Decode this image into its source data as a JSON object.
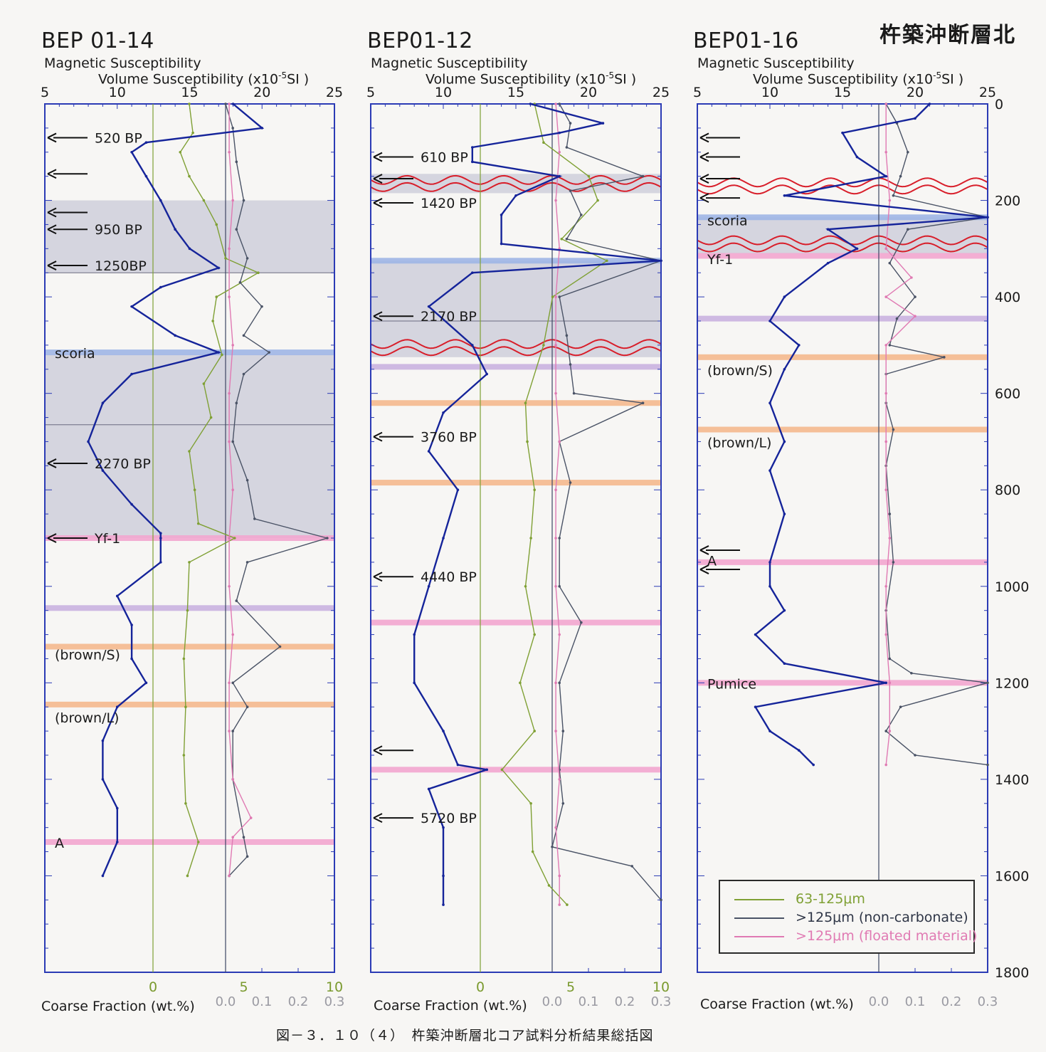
{
  "page": {
    "main_title": "杵築沖断層北",
    "caption": "図－３．１０（４）　杵築沖断層北コア試料分析結果総括図",
    "ms_label": "Magnetic Susceptibility",
    "vs_label_pre": "Volume Susceptibility (x10",
    "vs_label_exp": "-5",
    "vs_label_post": "SI )",
    "cf_label": "Coarse Fraction (wt.%)"
  },
  "legend": {
    "items": [
      {
        "label": "63-125μm",
        "color": "#7fa034"
      },
      {
        "label": ">125μm (non-carbonate)",
        "color": "#4a5366"
      },
      {
        "label": ">125μm (floated material)",
        "color": "#e07ab3"
      }
    ]
  },
  "colors": {
    "ms": "#15249a",
    "fine": "#7fa034",
    "coarse": "#4a5366",
    "floated": "#e07ab3",
    "frame": "#2b3bb5",
    "shade": "#cfcfdb",
    "tephra_blue": "#9fb6e6",
    "tephra_pink": "#f2a6cf",
    "tephra_purple": "#c9b2e0",
    "tephra_orange": "#f4b98e",
    "wavy": "#d81e2a"
  },
  "chart_data": [
    {
      "type": "line",
      "core": "BEP 01-14",
      "ms_ticks": [
        "5",
        "10",
        "15",
        "20",
        "25"
      ],
      "cf_green_ticks": [
        "0",
        "5",
        "10"
      ],
      "cf_gray_ticks": [
        "0.0",
        "0.1",
        "0.2",
        "0.3"
      ],
      "ms_range": [
        5,
        25
      ],
      "depth_range": [
        0,
        1800
      ],
      "shaded_intervals": [
        [
          200,
          350
        ],
        [
          520,
          900
        ]
      ],
      "ref_lines": [
        665,
        350
      ],
      "tephra": [
        {
          "depth": 515,
          "color": "blue"
        },
        {
          "depth": 900,
          "color": "pink"
        },
        {
          "depth": 1045,
          "color": "purple"
        },
        {
          "depth": 1125,
          "color": "orange"
        },
        {
          "depth": 1245,
          "color": "orange"
        },
        {
          "depth": 1530,
          "color": "pink"
        }
      ],
      "wavy": [],
      "labels": [
        {
          "text": "520 BP",
          "depth": 70,
          "arrow": true
        },
        {
          "text": "",
          "depth": 145,
          "arrow": true
        },
        {
          "text": "",
          "depth": 225,
          "arrow": true
        },
        {
          "text": "950 BP",
          "depth": 260,
          "arrow": true
        },
        {
          "text": "1250BP",
          "depth": 335,
          "arrow": true
        },
        {
          "text": "scoria",
          "depth": 515,
          "arrow": false
        },
        {
          "text": "2270 BP",
          "depth": 745,
          "arrow": true
        },
        {
          "text": "Yf-1",
          "depth": 900,
          "arrow": true
        },
        {
          "text": "(brown/S)",
          "depth": 1140,
          "arrow": false
        },
        {
          "text": "(brown/L)",
          "depth": 1270,
          "arrow": false
        },
        {
          "text": "A",
          "depth": 1530,
          "arrow": false
        }
      ],
      "ms": {
        "depth": [
          0,
          50,
          80,
          100,
          150,
          200,
          260,
          300,
          340,
          380,
          420,
          480,
          515,
          560,
          620,
          700,
          760,
          830,
          890,
          900,
          950,
          1020,
          1080,
          1150,
          1200,
          1250,
          1320,
          1400,
          1460,
          1530,
          1600
        ],
        "values": [
          18,
          20,
          12,
          11,
          12,
          13,
          14,
          15,
          17,
          13,
          11,
          14,
          17,
          11,
          9,
          8,
          9,
          11,
          13,
          13,
          13,
          10,
          11,
          11,
          12,
          10,
          9,
          9,
          10,
          10,
          9
        ]
      },
      "fine": {
        "depth": [
          0,
          60,
          100,
          150,
          200,
          250,
          320,
          350,
          400,
          450,
          520,
          580,
          650,
          720,
          800,
          870,
          900,
          950,
          1050,
          1150,
          1250,
          1350,
          1450,
          1530,
          1600
        ],
        "values": [
          2.0,
          2.2,
          1.5,
          2.0,
          2.8,
          3.5,
          4.0,
          5.8,
          3.5,
          3.3,
          3.8,
          2.8,
          3.2,
          2.0,
          2.3,
          2.5,
          4.5,
          2.0,
          1.9,
          1.7,
          1.8,
          1.7,
          1.8,
          2.5,
          1.9
        ]
      },
      "coarse": {
        "depth": [
          0,
          50,
          120,
          200,
          260,
          320,
          370,
          420,
          480,
          515,
          560,
          620,
          700,
          780,
          860,
          900,
          950,
          1030,
          1125,
          1200,
          1250,
          1300,
          1400,
          1520,
          1560,
          1600
        ],
        "values": [
          0.0,
          0.02,
          0.03,
          0.05,
          0.03,
          0.06,
          0.04,
          0.1,
          0.05,
          0.12,
          0.05,
          0.03,
          0.02,
          0.06,
          0.08,
          0.28,
          0.06,
          0.03,
          0.15,
          0.02,
          0.06,
          0.02,
          0.02,
          0.05,
          0.06,
          0.01
        ]
      },
      "floated": {
        "depth": [
          0,
          100,
          200,
          300,
          400,
          500,
          600,
          700,
          800,
          900,
          1000,
          1100,
          1200,
          1300,
          1400,
          1480,
          1520,
          1600
        ],
        "values": [
          0.01,
          0.01,
          0.02,
          0.01,
          0.01,
          0.02,
          0.01,
          0.01,
          0.02,
          0.01,
          0.01,
          0.02,
          0.01,
          0.01,
          0.02,
          0.07,
          0.02,
          0.01
        ]
      }
    },
    {
      "type": "line",
      "core": "BEP01-12",
      "ms_ticks": [
        "5",
        "10",
        "15",
        "20",
        "25"
      ],
      "cf_green_ticks": [
        "0",
        "5",
        "10"
      ],
      "cf_gray_ticks": [
        "0.0",
        "0.1",
        "0.2",
        "0.3"
      ],
      "ms_range": [
        5,
        25
      ],
      "depth_range": [
        0,
        1800
      ],
      "shaded_intervals": [
        [
          145,
          185
        ],
        [
          325,
          525
        ]
      ],
      "ref_lines": [
        450
      ],
      "tephra": [
        {
          "depth": 325,
          "color": "blue"
        },
        {
          "depth": 545,
          "color": "purple"
        },
        {
          "depth": 620,
          "color": "orange"
        },
        {
          "depth": 785,
          "color": "orange"
        },
        {
          "depth": 1075,
          "color": "pink"
        },
        {
          "depth": 1380,
          "color": "pink"
        }
      ],
      "wavy": [
        165,
        505
      ],
      "labels": [
        {
          "text": "610 BP",
          "depth": 110,
          "arrow": true
        },
        {
          "text": "",
          "depth": 155,
          "arrow": true
        },
        {
          "text": "1420 BP",
          "depth": 205,
          "arrow": true
        },
        {
          "text": "2170 BP",
          "depth": 440,
          "arrow": true
        },
        {
          "text": "3760 BP",
          "depth": 690,
          "arrow": true
        },
        {
          "text": "4440 BP",
          "depth": 980,
          "arrow": true
        },
        {
          "text": "",
          "depth": 1340,
          "arrow": true
        },
        {
          "text": "5720 BP",
          "depth": 1480,
          "arrow": true
        }
      ],
      "ms": {
        "depth": [
          0,
          40,
          60,
          90,
          120,
          150,
          190,
          230,
          290,
          325,
          350,
          420,
          500,
          560,
          640,
          720,
          800,
          900,
          1000,
          1100,
          1200,
          1300,
          1370,
          1380,
          1420,
          1500,
          1600,
          1660
        ],
        "values": [
          16,
          21,
          18,
          12,
          12,
          18,
          15,
          14,
          14,
          25,
          12,
          9,
          12,
          13,
          10,
          9,
          11,
          10,
          9,
          8,
          8,
          10,
          11,
          13,
          9,
          10,
          10,
          10
        ]
      },
      "fine": {
        "depth": [
          0,
          80,
          150,
          200,
          280,
          325,
          400,
          500,
          620,
          700,
          800,
          900,
          1000,
          1100,
          1200,
          1300,
          1380,
          1450,
          1550,
          1620,
          1660
        ],
        "values": [
          3.0,
          3.5,
          6.0,
          6.5,
          4.5,
          7.0,
          4.0,
          3.5,
          2.5,
          2.6,
          3.0,
          2.8,
          2.5,
          3.0,
          2.2,
          3.0,
          1.2,
          2.8,
          2.9,
          3.8,
          4.8
        ]
      },
      "coarse": {
        "depth": [
          0,
          40,
          90,
          150,
          180,
          230,
          280,
          325,
          400,
          480,
          540,
          600,
          620,
          700,
          785,
          900,
          1000,
          1075,
          1200,
          1300,
          1380,
          1450,
          1540,
          1580,
          1650
        ],
        "values": [
          0.02,
          0.05,
          0.04,
          0.25,
          0.05,
          0.08,
          0.04,
          0.3,
          0.02,
          0.04,
          0.05,
          0.06,
          0.25,
          0.02,
          0.05,
          0.02,
          0.02,
          0.08,
          0.02,
          0.03,
          0.02,
          0.03,
          0.0,
          0.22,
          0.3
        ]
      },
      "floated": {
        "depth": [
          0,
          100,
          200,
          300,
          400,
          500,
          600,
          700,
          800,
          900,
          1000,
          1100,
          1200,
          1300,
          1400,
          1500,
          1600,
          1660
        ],
        "values": [
          0.01,
          0.02,
          0.01,
          0.02,
          0.01,
          0.01,
          0.01,
          0.02,
          0.01,
          0.01,
          0.01,
          0.02,
          0.01,
          0.01,
          0.02,
          0.01,
          0.02,
          0.02
        ]
      }
    },
    {
      "type": "line",
      "core": "BEP01-16",
      "ms_ticks": [
        "5",
        "10",
        "15",
        "20",
        "25"
      ],
      "cf_green_ticks": [],
      "cf_gray_ticks": [
        "0.0",
        "0.1",
        "0.2",
        "0.3"
      ],
      "ms_range": [
        5,
        25
      ],
      "depth_range": [
        0,
        1800
      ],
      "depth_ticks": [
        "0",
        "200",
        "400",
        "600",
        "800",
        "1000",
        "1200",
        "1400",
        "1600",
        "1800"
      ],
      "shaded_intervals": [
        [
          235,
          310
        ]
      ],
      "ref_lines": [],
      "tephra": [
        {
          "depth": 235,
          "color": "blue"
        },
        {
          "depth": 315,
          "color": "pink"
        },
        {
          "depth": 445,
          "color": "purple"
        },
        {
          "depth": 525,
          "color": "orange"
        },
        {
          "depth": 675,
          "color": "orange"
        },
        {
          "depth": 950,
          "color": "pink"
        },
        {
          "depth": 1200,
          "color": "pink"
        }
      ],
      "wavy": [
        170,
        290
      ],
      "labels": [
        {
          "text": "",
          "depth": 70,
          "arrow": true
        },
        {
          "text": "",
          "depth": 110,
          "arrow": true
        },
        {
          "text": "",
          "depth": 155,
          "arrow": true
        },
        {
          "text": "",
          "depth": 195,
          "arrow": true
        },
        {
          "text": "scoria",
          "depth": 240,
          "arrow": false
        },
        {
          "text": "Yf-1",
          "depth": 320,
          "arrow": false
        },
        {
          "text": "(brown/S)",
          "depth": 550,
          "arrow": false
        },
        {
          "text": "(brown/L)",
          "depth": 700,
          "arrow": false
        },
        {
          "text": "",
          "depth": 925,
          "arrow": true
        },
        {
          "text": "A",
          "depth": 945,
          "arrow": false
        },
        {
          "text": "",
          "depth": 965,
          "arrow": true
        },
        {
          "text": "Pumice",
          "depth": 1200,
          "arrow": false
        }
      ],
      "ms": {
        "depth": [
          0,
          30,
          60,
          110,
          150,
          190,
          235,
          260,
          300,
          330,
          400,
          450,
          500,
          550,
          620,
          700,
          760,
          850,
          950,
          1000,
          1050,
          1100,
          1160,
          1200,
          1250,
          1300,
          1340,
          1370
        ],
        "values": [
          21,
          20,
          15,
          16,
          18,
          11,
          25,
          14,
          16,
          14,
          11,
          10,
          12,
          11,
          10,
          11,
          10,
          11,
          10,
          10,
          11,
          9,
          11,
          18,
          9,
          10,
          12,
          13
        ]
      },
      "coarse": {
        "depth": [
          0,
          40,
          100,
          150,
          190,
          235,
          260,
          330,
          400,
          445,
          500,
          525,
          560,
          620,
          675,
          750,
          850,
          950,
          1050,
          1150,
          1180,
          1200,
          1250,
          1300,
          1350,
          1370
        ],
        "values": [
          0.02,
          0.05,
          0.08,
          0.06,
          0.04,
          0.3,
          0.08,
          0.03,
          0.1,
          0.05,
          0.03,
          0.18,
          0.02,
          0.02,
          0.04,
          0.02,
          0.03,
          0.04,
          0.02,
          0.03,
          0.09,
          0.3,
          0.06,
          0.02,
          0.1,
          0.3
        ]
      },
      "floated": {
        "depth": [
          0,
          100,
          200,
          300,
          360,
          400,
          440,
          500,
          600,
          700,
          800,
          900,
          1000,
          1100,
          1200,
          1300,
          1370
        ],
        "values": [
          0.02,
          0.02,
          0.03,
          0.02,
          0.09,
          0.02,
          0.1,
          0.02,
          0.02,
          0.02,
          0.02,
          0.03,
          0.02,
          0.02,
          0.03,
          0.03,
          0.02
        ]
      }
    }
  ]
}
